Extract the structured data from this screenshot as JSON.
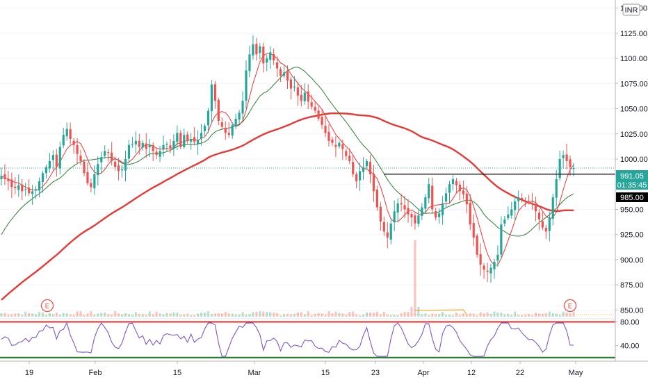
{
  "chart_data": {
    "type": "candlestick",
    "currency": "INR",
    "y_axis": {
      "ticks": [
        "1150.00",
        "1125.00",
        "1100.00",
        "1075.00",
        "1050.00",
        "1025.00",
        "1000.00",
        "975.00",
        "950.00",
        "925.00",
        "900.00",
        "875.00",
        "850.00"
      ],
      "range": [
        842,
        1158
      ]
    },
    "x_axis": {
      "ticks": [
        "19",
        "Feb",
        "15",
        "Mar",
        "15",
        "23",
        "Apr",
        "12",
        "22",
        "May"
      ]
    },
    "price_labels": {
      "last_price": "991.05",
      "countdown": "01:35:45",
      "level": "985.00"
    },
    "rsi": {
      "ticks": [
        "80.00",
        "40.00"
      ],
      "upper_band": 80,
      "lower_band": 20,
      "range": [
        14,
        84
      ]
    },
    "earnings_markers": [
      "E",
      "E"
    ],
    "closes": [
      983,
      980,
      978,
      972,
      971,
      974,
      968,
      970,
      966,
      968,
      970,
      978,
      986,
      992,
      998,
      1004,
      992,
      1012,
      1024,
      1030,
      1020,
      1014,
      1005,
      998,
      986,
      976,
      972,
      985,
      995,
      1002,
      1008,
      1006,
      998,
      992,
      988,
      990,
      1000,
      1014,
      1015,
      1018,
      1012,
      1016,
      1010,
      1014,
      1008,
      1004,
      1008,
      1014,
      1015,
      1011,
      1018,
      1026,
      1012,
      1024,
      1018,
      1020,
      1017,
      1019,
      1026,
      1033,
      1048,
      1074,
      1058,
      1038,
      1032,
      1026,
      1024,
      1034,
      1040,
      1046,
      1058,
      1088,
      1104,
      1114,
      1104,
      1112,
      1095,
      1100,
      1106,
      1098,
      1090,
      1083,
      1086,
      1078,
      1070,
      1072,
      1063,
      1058,
      1066,
      1057,
      1052,
      1048,
      1040,
      1034,
      1026,
      1018,
      1016,
      1012,
      1016,
      1010,
      1003,
      998,
      985,
      978,
      988,
      992,
      998,
      985,
      968,
      952,
      938,
      928,
      922,
      936,
      948,
      956,
      955,
      950,
      945,
      942,
      936,
      944,
      952,
      962,
      975,
      950,
      942,
      946,
      956,
      966,
      975,
      980,
      974,
      968,
      965,
      955,
      935,
      922,
      905,
      895,
      890,
      888,
      892,
      898,
      905,
      935,
      940,
      945,
      950,
      958,
      962,
      960,
      958,
      957,
      955,
      948,
      940,
      932,
      928,
      942,
      962,
      980,
      1000,
      1004,
      998,
      992,
      991
    ]
  }
}
